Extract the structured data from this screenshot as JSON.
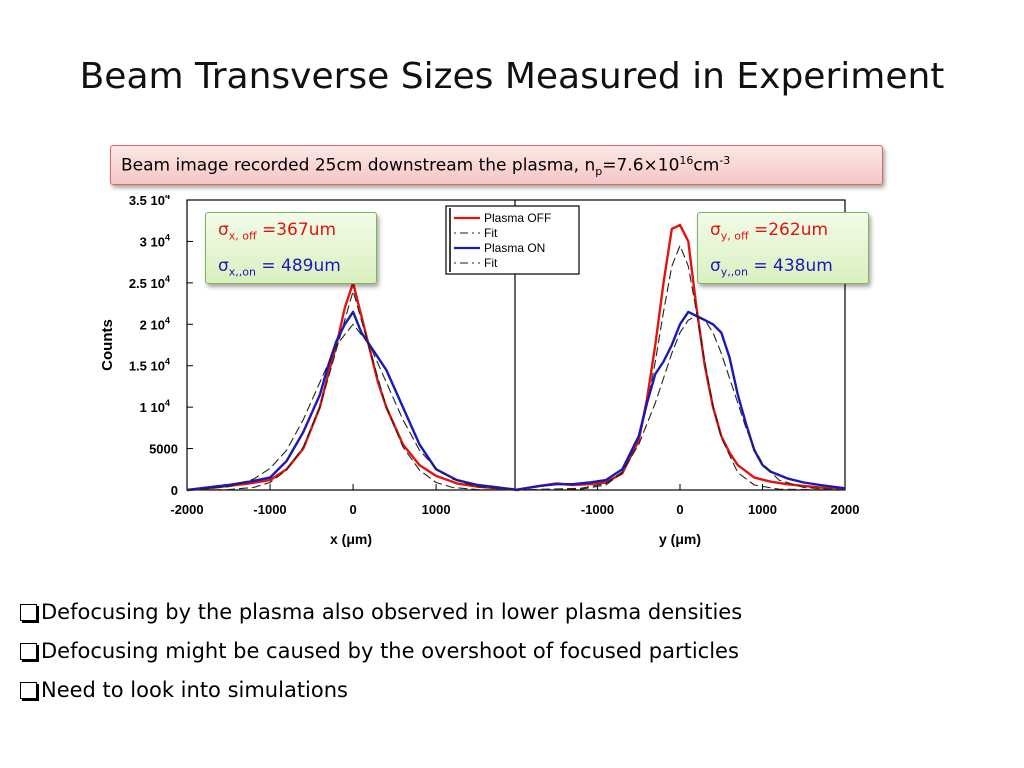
{
  "title": "Beam Transverse Sizes Measured in Experiment",
  "caption": {
    "prefix": "Beam image recorded 25cm downstream the plasma, n",
    "sub": "p",
    "mid": "=7.6×10",
    "sup1": "16",
    "unit": "cm",
    "sup2": "-3"
  },
  "sigma_x": {
    "off_sym": "σ",
    "off_sub": "x, off",
    "off_val": " =367um",
    "on_sym": "σ",
    "on_sub": "x,,on",
    "on_val": " = 489um"
  },
  "sigma_y": {
    "off_sym": "σ",
    "off_sub": "y, off",
    "off_val": " =262um",
    "on_sym": "σ",
    "on_sub": "y,,on",
    "on_val": " = 438um"
  },
  "bullets": [
    "Defocusing  by the plasma also observed in lower plasma densities",
    "Defocusing might be caused by the overshoot of focused particles",
    "Need to look into simulations"
  ],
  "colors": {
    "plasma_off": "#e0150f",
    "plasma_on": "#1a1ab8",
    "fit": "#222222"
  },
  "chart_data": [
    {
      "type": "line",
      "ylabel": "Counts",
      "xlabel": "x (μm)",
      "xlim": [
        -2000,
        2000
      ],
      "ylim": [
        0,
        35000
      ],
      "yticks": [
        {
          "value": 0,
          "base": "0",
          "exp": ""
        },
        {
          "value": 5000,
          "base": "5000",
          "exp": ""
        },
        {
          "value": 10000,
          "base": "1 10",
          "exp": "4"
        },
        {
          "value": 15000,
          "base": "1.5 10",
          "exp": "4"
        },
        {
          "value": 20000,
          "base": "2 10",
          "exp": "4"
        },
        {
          "value": 25000,
          "base": "2.5 10",
          "exp": "4"
        },
        {
          "value": 30000,
          "base": "3 10",
          "exp": "4"
        },
        {
          "value": 35000,
          "base": "3.5 10",
          "exp": "4"
        }
      ],
      "xticks": [
        "-2000",
        "-1000",
        "0",
        "1000"
      ],
      "legend": [
        "Plasma OFF",
        "Fit",
        "Plasma ON",
        "Fit"
      ],
      "series": [
        {
          "name": "Plasma OFF",
          "x": [
            -2000,
            -1750,
            -1500,
            -1250,
            -1000,
            -800,
            -600,
            -400,
            -300,
            -200,
            -100,
            0,
            100,
            200,
            300,
            400,
            600,
            800,
            1000,
            1250,
            1500,
            1750,
            2000
          ],
          "y": [
            0,
            200,
            500,
            800,
            1200,
            2500,
            5000,
            10000,
            14000,
            17500,
            22000,
            25000,
            21000,
            17000,
            13000,
            10000,
            5500,
            3000,
            1700,
            800,
            400,
            200,
            0
          ]
        },
        {
          "name": "Fit",
          "x": [
            -2000,
            -1500,
            -1200,
            -1000,
            -800,
            -600,
            -400,
            -200,
            0,
            200,
            400,
            600,
            800,
            1000,
            1200,
            1500,
            2000
          ],
          "y": [
            0,
            50,
            300,
            900,
            2400,
            5200,
            10000,
            17000,
            24000,
            17000,
            10000,
            5200,
            2400,
            900,
            300,
            50,
            0
          ]
        },
        {
          "name": "Plasma ON",
          "x": [
            -2000,
            -1750,
            -1500,
            -1250,
            -1000,
            -800,
            -600,
            -400,
            -300,
            -200,
            -100,
            0,
            100,
            200,
            300,
            400,
            600,
            800,
            1000,
            1250,
            1500,
            1750,
            2000
          ],
          "y": [
            0,
            300,
            600,
            1000,
            1500,
            3500,
            7000,
            11500,
            15000,
            18000,
            20000,
            21500,
            19000,
            17500,
            16000,
            14500,
            10000,
            5500,
            2500,
            1200,
            600,
            300,
            0
          ]
        },
        {
          "name": "Fit",
          "x": [
            -2000,
            -1500,
            -1200,
            -1000,
            -800,
            -600,
            -400,
            -200,
            0,
            200,
            400,
            600,
            800,
            1000,
            1200,
            1500,
            2000
          ],
          "y": [
            0,
            400,
            1300,
            2600,
            4800,
            8500,
            13000,
            17500,
            20000,
            17500,
            13000,
            8500,
            4800,
            2600,
            1300,
            400,
            0
          ]
        }
      ]
    },
    {
      "type": "line",
      "xlabel": "y (μm)",
      "xlim": [
        -2000,
        2000
      ],
      "ylim": [
        0,
        35000
      ],
      "xticks": [
        "-1000",
        "0",
        "1000",
        "2000"
      ],
      "series": [
        {
          "name": "Plasma OFF",
          "x": [
            -2000,
            -1700,
            -1500,
            -1300,
            -1100,
            -900,
            -700,
            -500,
            -400,
            -300,
            -200,
            -100,
            0,
            100,
            200,
            300,
            400,
            500,
            600,
            700,
            900,
            1100,
            1300,
            1500,
            1700,
            2000
          ],
          "y": [
            0,
            500,
            800,
            600,
            700,
            900,
            2000,
            6000,
            11000,
            17500,
            25000,
            31500,
            32000,
            30000,
            22000,
            15000,
            10000,
            6500,
            4500,
            3000,
            1500,
            1000,
            700,
            500,
            300,
            200
          ]
        },
        {
          "name": "Fit",
          "x": [
            -2000,
            -1200,
            -900,
            -700,
            -500,
            -400,
            -300,
            -200,
            -100,
            0,
            100,
            200,
            300,
            400,
            500,
            700,
            900,
            1200,
            2000
          ],
          "y": [
            0,
            100,
            600,
            2100,
            6300,
            10200,
            15500,
            21500,
            27000,
            29500,
            27000,
            21500,
            15500,
            10200,
            6300,
            2100,
            600,
            100,
            0
          ]
        },
        {
          "name": "Plasma ON",
          "x": [
            -2000,
            -1700,
            -1500,
            -1300,
            -1100,
            -900,
            -700,
            -500,
            -400,
            -300,
            -200,
            -100,
            0,
            100,
            200,
            300,
            400,
            500,
            600,
            700,
            800,
            900,
            1000,
            1100,
            1300,
            1500,
            1700,
            2000
          ],
          "y": [
            0,
            500,
            700,
            700,
            900,
            1200,
            2500,
            6500,
            10500,
            14000,
            15500,
            17500,
            20000,
            21500,
            21000,
            20500,
            20000,
            19000,
            16000,
            11500,
            8000,
            4800,
            3000,
            2200,
            1400,
            900,
            600,
            200
          ]
        },
        {
          "name": "Fit",
          "x": [
            -2000,
            -1200,
            -900,
            -700,
            -500,
            -300,
            -100,
            0,
            100,
            200,
            300,
            400,
            500,
            600,
            700,
            800,
            900,
            1000,
            1200,
            1500,
            2000
          ],
          "y": [
            0,
            200,
            800,
            2200,
            5500,
            10500,
            16500,
            19000,
            20500,
            21000,
            20500,
            19000,
            16500,
            13500,
            10500,
            7500,
            5000,
            3200,
            1200,
            300,
            0
          ]
        }
      ]
    }
  ]
}
